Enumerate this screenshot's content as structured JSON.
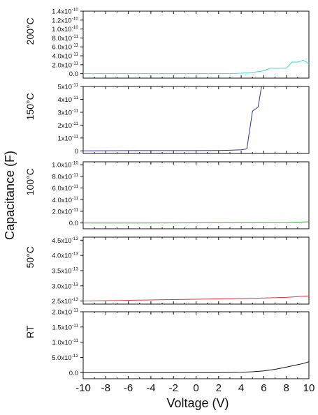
{
  "chart_data": {
    "type": "line",
    "ylabel": "Capacitance (F)",
    "xlabel": "Voltage (V)",
    "xlim": [
      -10,
      10
    ],
    "x_ticks": [
      "-10",
      "-8",
      "-6",
      "-4",
      "-2",
      "0",
      "2",
      "4",
      "6",
      "8",
      "10"
    ],
    "grid": false,
    "panels": [
      {
        "label": "200°C",
        "color": "#3fd4e0",
        "ylim": [
          -1e-11,
          1.4e-10
        ],
        "y_ticks": [
          {
            "v": 1.4e-10,
            "mant": "1.4x10",
            "exp": "-10"
          },
          {
            "v": 1.2e-10,
            "mant": "1.2x10",
            "exp": "-10"
          },
          {
            "v": 1e-10,
            "mant": "1.0x10",
            "exp": "-10"
          },
          {
            "v": 8e-11,
            "mant": "8.0x10",
            "exp": "-11"
          },
          {
            "v": 6e-11,
            "mant": "6.0x10",
            "exp": "-11"
          },
          {
            "v": 4e-11,
            "mant": "4.0x10",
            "exp": "-11"
          },
          {
            "v": 2e-11,
            "mant": "2.0x10",
            "exp": "-11"
          },
          {
            "v": 0,
            "mant": "0.0",
            "exp": ""
          }
        ],
        "series": [
          {
            "x": [
              -10,
              -5,
              0,
              3,
              4,
              5,
              6,
              6.5,
              7,
              8,
              8.5,
              9,
              9.5,
              10
            ],
            "y": [
              0,
              0,
              0,
              0,
              1e-12,
              3e-12,
              6e-12,
              1.2e-11,
              1.2e-11,
              1.2e-11,
              2.6e-11,
              2.6e-11,
              3e-11,
              2.2e-11
            ]
          }
        ]
      },
      {
        "label": "150°C",
        "color": "#2d2d9a",
        "ylim": [
          -2e-12,
          5e-11
        ],
        "y_ticks": [
          {
            "v": 5e-11,
            "mant": "5x10",
            "exp": "-11"
          },
          {
            "v": 4e-11,
            "mant": "4x10",
            "exp": "-11"
          },
          {
            "v": 3e-11,
            "mant": "3x10",
            "exp": "-11"
          },
          {
            "v": 2e-11,
            "mant": "2x10",
            "exp": "-11"
          },
          {
            "v": 1e-11,
            "mant": "1x10",
            "exp": "-11"
          },
          {
            "v": 0,
            "mant": "0",
            "exp": ""
          }
        ],
        "series": [
          {
            "x": [
              -10,
              -5,
              0,
              2,
              3,
              4,
              4.5,
              5,
              5.5,
              5.8
            ],
            "y": [
              0,
              2e-13,
              2e-13,
              3e-13,
              5e-13,
              8e-13,
              1.5e-12,
              3.1e-11,
              3.4e-11,
              5e-11
            ]
          }
        ]
      },
      {
        "label": "100°C",
        "color": "#3aa83a",
        "ylim": [
          -1e-11,
          1.05e-10
        ],
        "y_ticks": [
          {
            "v": 1e-10,
            "mant": "1.0x10",
            "exp": "-10"
          },
          {
            "v": 8e-11,
            "mant": "8.0x10",
            "exp": "-11"
          },
          {
            "v": 6e-11,
            "mant": "6.0x10",
            "exp": "-11"
          },
          {
            "v": 4e-11,
            "mant": "4.0x10",
            "exp": "-11"
          },
          {
            "v": 2e-11,
            "mant": "2.0x10",
            "exp": "-11"
          },
          {
            "v": 0,
            "mant": "0.0",
            "exp": ""
          }
        ],
        "series": [
          {
            "x": [
              -10,
              -5,
              0,
              5,
              8,
              10
            ],
            "y": [
              0,
              0,
              2e-13,
              4e-13,
              8e-13,
              2e-12
            ]
          }
        ]
      },
      {
        "label": "50°C",
        "color": "#d43a3a",
        "ylim": [
          2.4e-13,
          4.6e-13
        ],
        "y_ticks": [
          {
            "v": 4.5e-13,
            "mant": "4.5x10",
            "exp": "-13"
          },
          {
            "v": 4e-13,
            "mant": "4.0x10",
            "exp": "-13"
          },
          {
            "v": 3.5e-13,
            "mant": "3.5x10",
            "exp": "-13"
          },
          {
            "v": 3e-13,
            "mant": "3.0x10",
            "exp": "-13"
          },
          {
            "v": 2.5e-13,
            "mant": "2.5x10",
            "exp": "-13"
          }
        ],
        "series": [
          {
            "x": [
              -10,
              -5,
              0,
              5,
              8,
              10
            ],
            "y": [
              2.5e-13,
              2.53e-13,
              2.56e-13,
              2.59e-13,
              2.62e-13,
              2.67e-13
            ]
          }
        ]
      },
      {
        "label": "RT",
        "color": "#111111",
        "ylim": [
          -2e-12,
          2e-11
        ],
        "y_ticks": [
          {
            "v": 2e-11,
            "mant": "2.0x10",
            "exp": "-11"
          },
          {
            "v": 1.5e-11,
            "mant": "1.5x10",
            "exp": "-11"
          },
          {
            "v": 1e-11,
            "mant": "1.0x10",
            "exp": "-11"
          },
          {
            "v": 5e-12,
            "mant": "5.0x10",
            "exp": "-12"
          },
          {
            "v": 0,
            "mant": "0.0",
            "exp": ""
          }
        ],
        "series": [
          {
            "x": [
              -10,
              -6,
              -2,
              2,
              4,
              5,
              6,
              7,
              8,
              9,
              9.5,
              10
            ],
            "y": [
              0,
              0,
              0,
              0,
              1e-13,
              3e-13,
              6e-13,
              1.1e-12,
              1.8e-12,
              2.6e-12,
              3e-12,
              3.6e-12
            ]
          }
        ]
      }
    ]
  }
}
